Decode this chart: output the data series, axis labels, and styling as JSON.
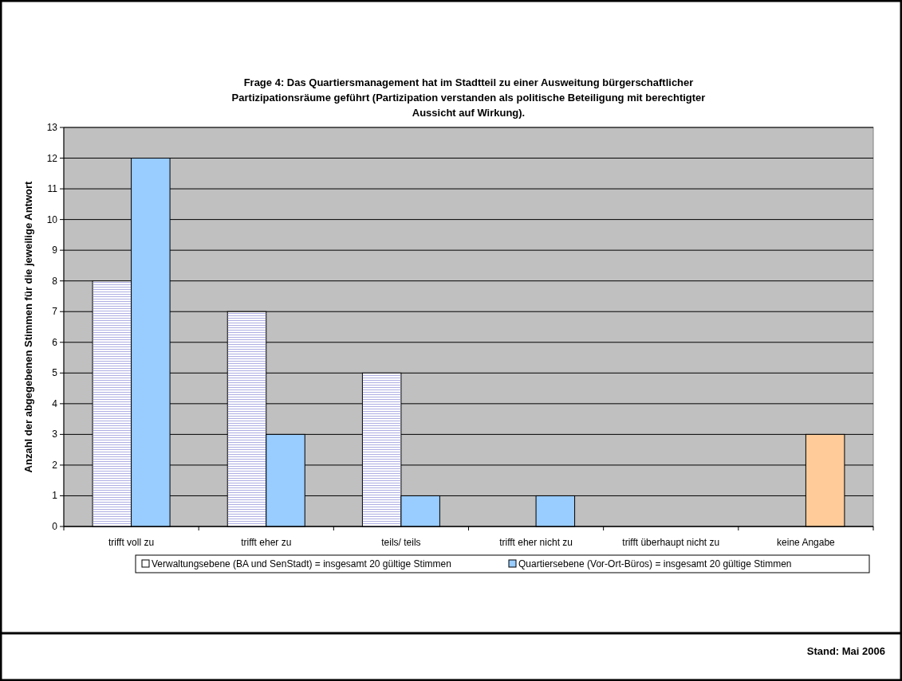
{
  "chart_data": {
    "type": "bar",
    "title": "Frage 4: Das Quartiersmanagement hat im Stadtteil zu einer Ausweitung bürgerschaftlicher Partizipationsräume geführt (Partizipation verstanden als politische Beteiligung mit berechtigter Aussicht auf Wirkung).",
    "ylabel": "Anzahl der abgegebenen Stimmen für die jeweilige Antwort",
    "categories": [
      "trifft voll zu",
      "trifft eher zu",
      "teils/ teils",
      "trifft eher nicht zu",
      "trifft überhaupt nicht zu",
      "keine Angabe"
    ],
    "series": [
      {
        "name": "Verwaltungsebene (BA und SenStadt) = insgesamt 20 gültige Stimmen",
        "color": "#ffffff",
        "values": [
          8,
          7,
          5,
          0,
          0,
          0
        ]
      },
      {
        "name": "Quartiersebene (Vor-Ort-Büros) = insgesamt 20 gültige Stimmen",
        "color": "#99ccff",
        "colors": [
          "#99ccff",
          "#99ccff",
          "#99ccff",
          "#99ccff",
          "#99ccff",
          "#ffcc99"
        ],
        "values": [
          12,
          3,
          1,
          1,
          0,
          3
        ]
      }
    ],
    "ylim": [
      0,
      13
    ],
    "yticks": [
      0,
      1,
      2,
      3,
      4,
      5,
      6,
      7,
      8,
      9,
      10,
      11,
      12,
      13
    ],
    "grid": "y",
    "legend": "bottom",
    "annotations": [
      "Stand: Mai 2006"
    ]
  }
}
